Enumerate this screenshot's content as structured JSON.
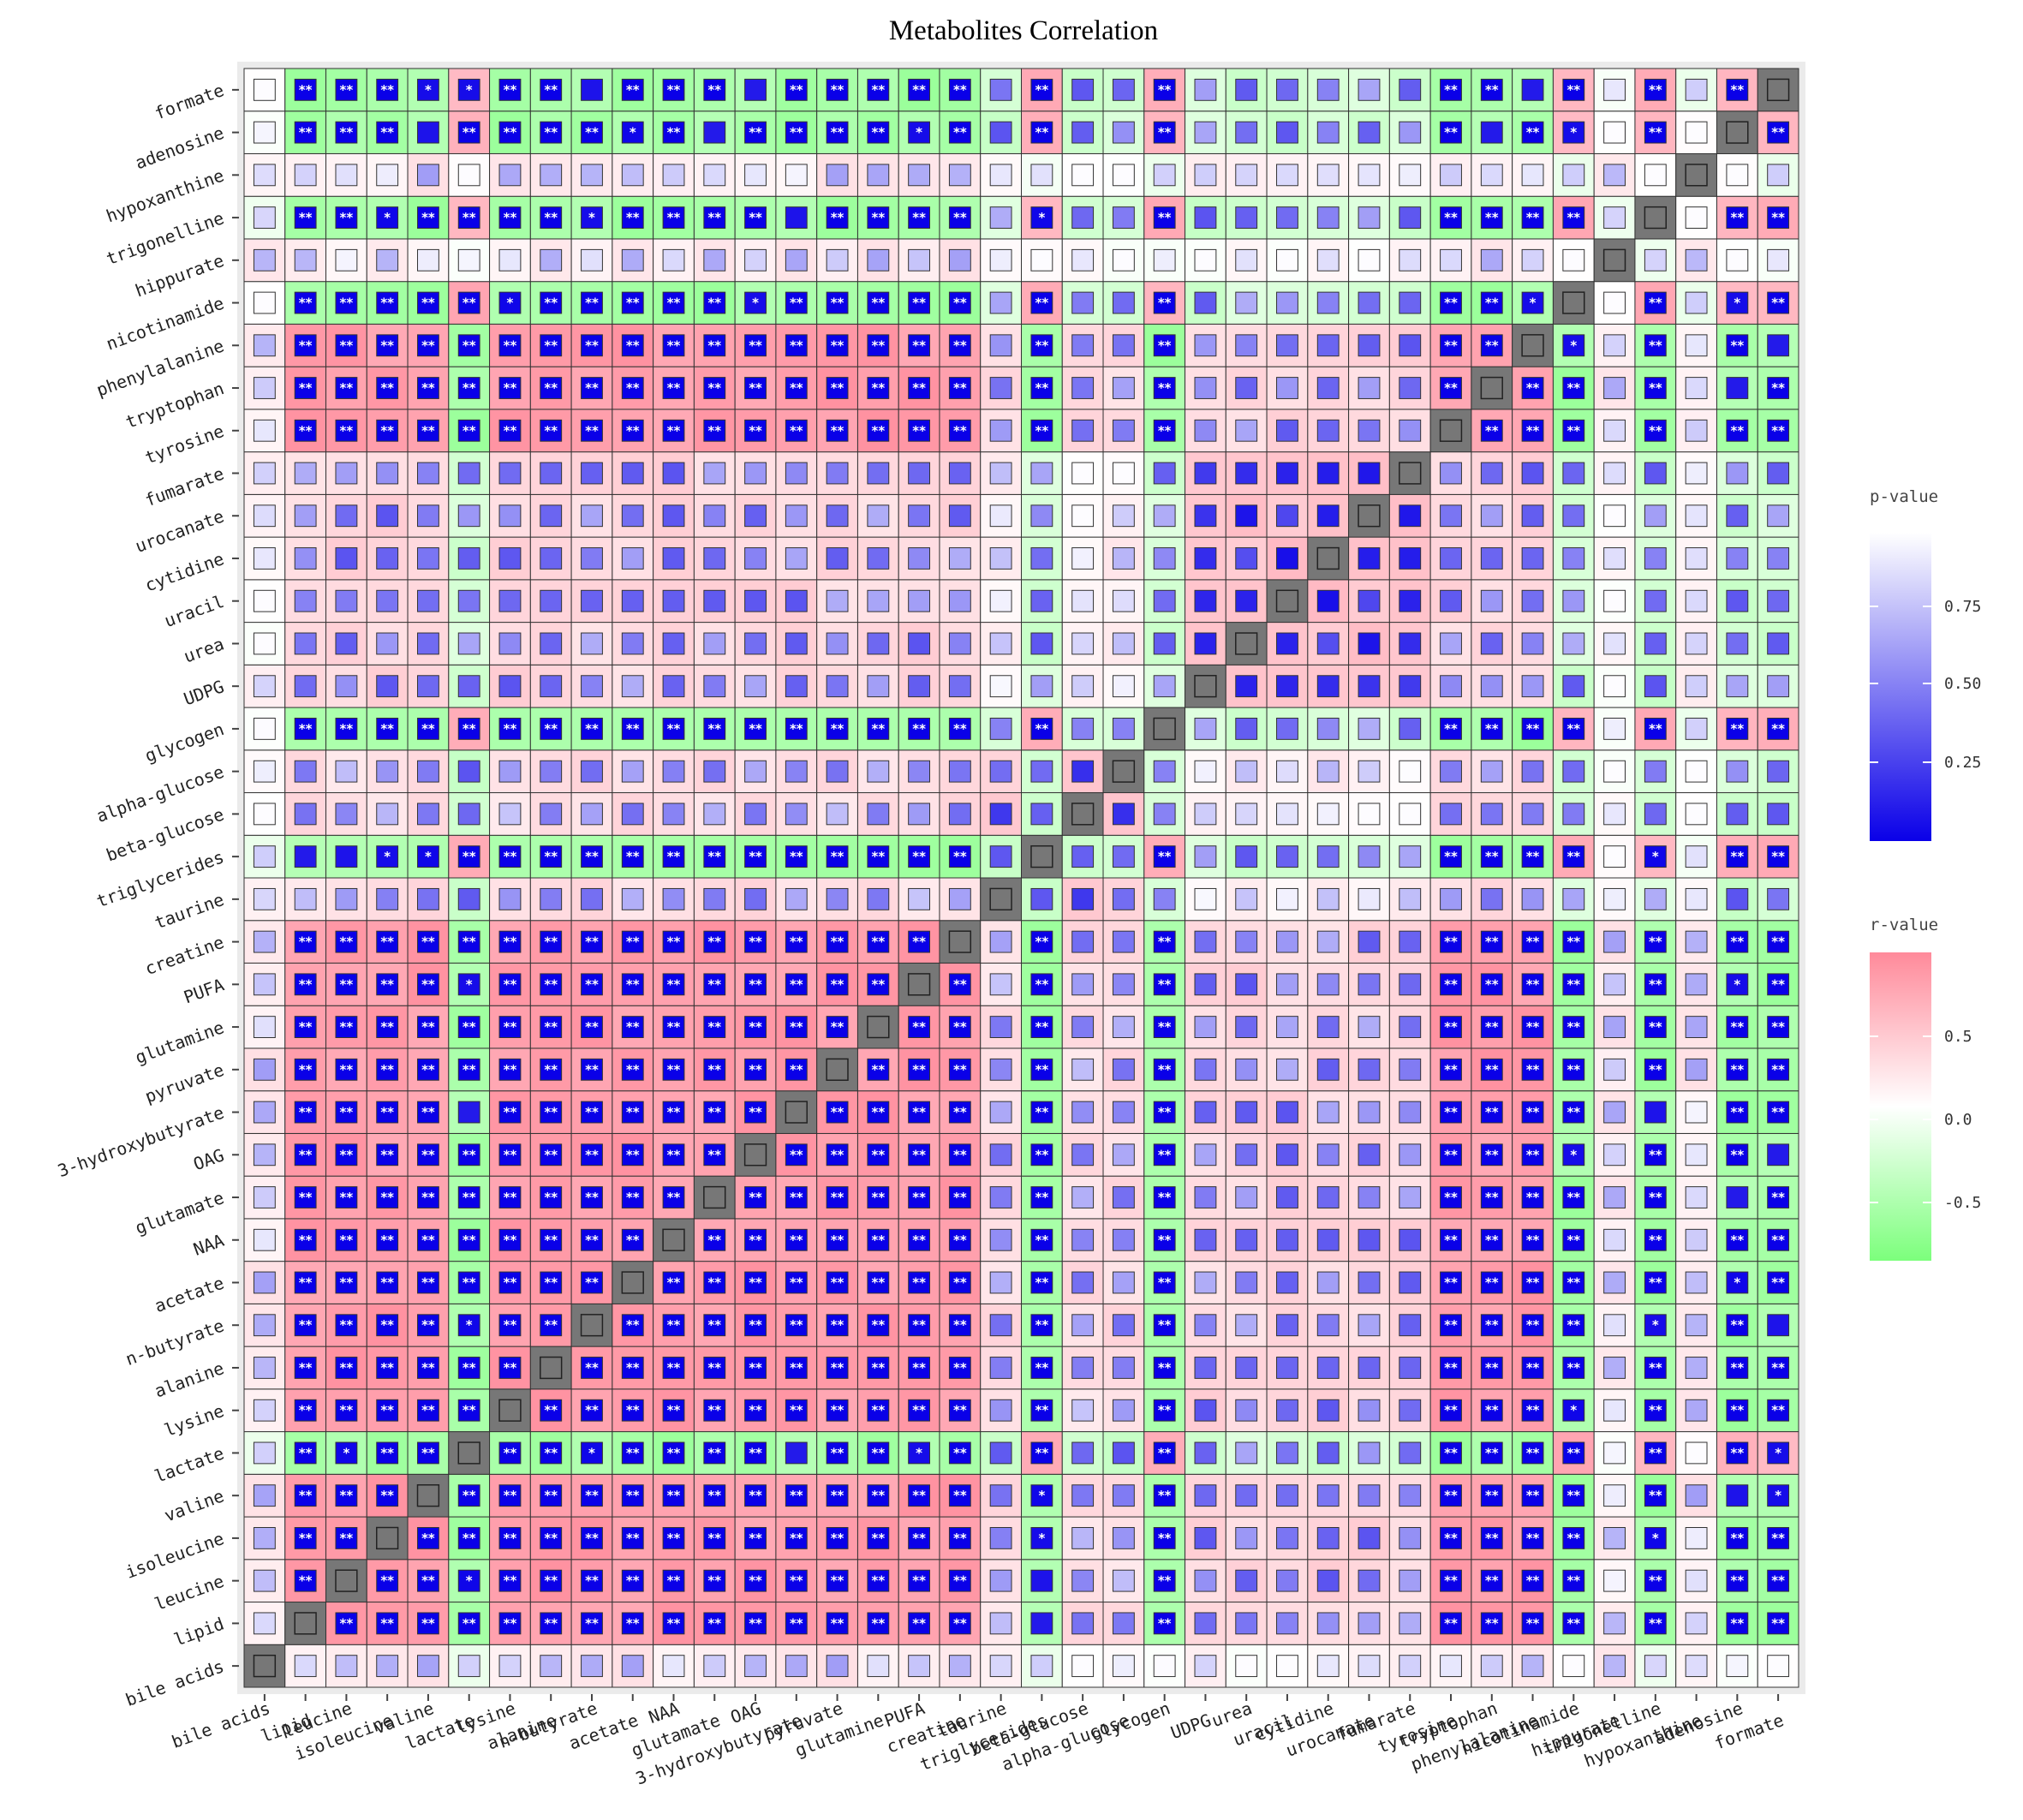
{
  "chart_data": {
    "type": "heatmap",
    "title": "Metabolites Correlation",
    "variables": [
      "bile acids",
      "lipid",
      "leucine",
      "isoleucine",
      "valine",
      "lactate",
      "lysine",
      "alanine",
      "n-butyrate",
      "acetate",
      "NAA",
      "glutamate",
      "OAG",
      "3-hydroxybutyrate",
      "pyruvate",
      "glutamine",
      "PUFA",
      "creatine",
      "taurine",
      "triglycerides",
      "beta-glucose",
      "alpha-glucose",
      "glycogen",
      "UDPG",
      "urea",
      "uracil",
      "cytidine",
      "urocanate",
      "fumarate",
      "tyrosine",
      "tryptophan",
      "phenylalanine",
      "nicotinamide",
      "hippurate",
      "trigonelline",
      "hypoxanthine",
      "adenosine",
      "formate"
    ],
    "groups": {
      "A": [
        "lipid",
        "leucine",
        "isoleucine",
        "valine",
        "lysine",
        "alanine",
        "n-butyrate",
        "acetate",
        "NAA",
        "glutamate",
        "OAG",
        "3-hydroxybutyrate",
        "pyruvate",
        "glutamine",
        "PUFA",
        "creatine",
        "tyrosine",
        "tryptophan",
        "phenylalanine"
      ],
      "B": [
        "lactate",
        "triglycerides",
        "glycogen",
        "nicotinamide",
        "trigonelline",
        "adenosine",
        "formate"
      ],
      "C": [
        "UDPG",
        "urea",
        "uracil",
        "cytidine",
        "urocanate",
        "fumarate"
      ],
      "D": [
        "taurine",
        "beta-glucose",
        "alpha-glucose"
      ],
      "E": [
        "bile acids",
        "hippurate",
        "hypoxanthine"
      ]
    },
    "r_value_rule": {
      "A-A": 0.75,
      "B-B": 0.6,
      "C-C": 0.45,
      "D-D": 0.4,
      "E-E": 0.1,
      "A-B": -0.6,
      "A-C": 0.3,
      "A-D": 0.25,
      "A-E": 0.15,
      "B-C": -0.3,
      "B-D": -0.3,
      "B-E": -0.05,
      "C-D": 0.1,
      "C-E": 0.05,
      "D-E": 0.05
    },
    "fill_encoding": "r-value",
    "marker_encoding": "p-value",
    "significance_marks": {
      "p<0.01": "**",
      "p<0.05": "*"
    },
    "diagonal_color": "#777777",
    "r_value_legend": {
      "title": "r-value",
      "ticks": [
        "0.5",
        "0.0",
        "-0.5"
      ],
      "low_color": "#7CFF7C",
      "mid_color": "#FFFFFF",
      "high_color": "#FF8A9A"
    },
    "p_value_legend": {
      "title": "p-value",
      "ticks": [
        "0.75",
        "0.50",
        "0.25"
      ],
      "low_color": "#0A00E8",
      "high_color": "#FFFFFF"
    },
    "panel_background": "#EBEBEB"
  }
}
